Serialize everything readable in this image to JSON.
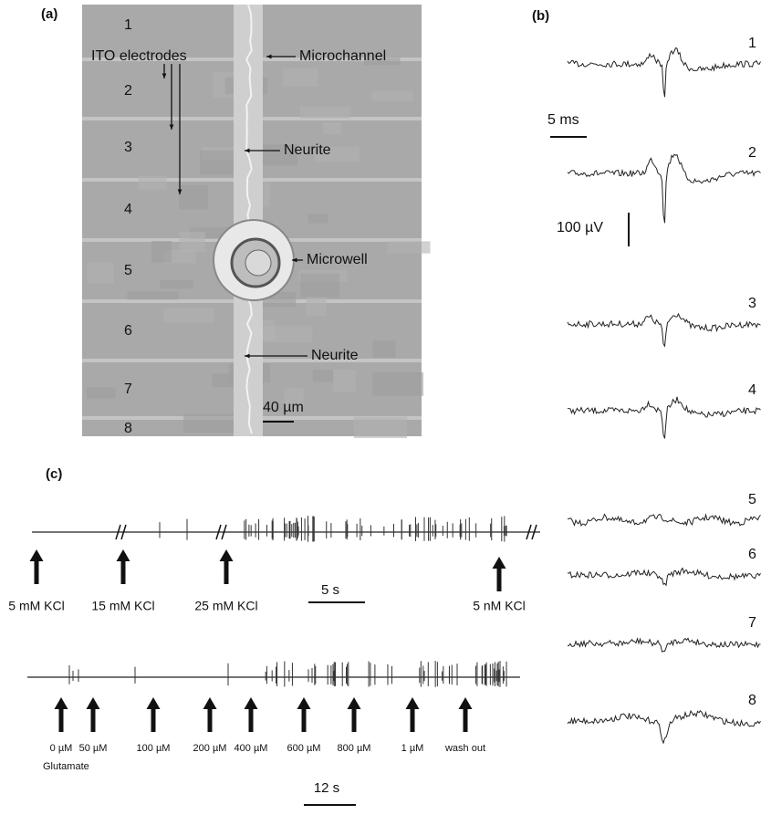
{
  "panel_a": {
    "label": "(a)",
    "electrodes": [
      1,
      2,
      3,
      4,
      5,
      6,
      7,
      8
    ],
    "ito_electrodes": "ITO electrodes",
    "microchannel": "Microchannel",
    "neurite_upper": "Neurite",
    "microwell": "Microwell",
    "neurite_lower": "Neurite",
    "scale_bar": "40 µm"
  },
  "panel_b": {
    "label": "(b)",
    "trace_numbers": [
      1,
      2,
      3,
      4,
      5,
      6,
      7,
      8
    ],
    "time_scale": "5 ms",
    "voltage_scale": "100 µV"
  },
  "panel_c": {
    "label": "(c)",
    "kcl_labels": [
      "5 mM KCl",
      "15 mM KCl",
      "25 mM KCl",
      "5 nM KCl"
    ],
    "kcl_time_scale": "5 s",
    "glutamate_labels": [
      "0 µM",
      "50 µM",
      "100 µM",
      "200 µM",
      "400 µM",
      "600 µM",
      "800 µM",
      "1 µM",
      "wash out"
    ],
    "glutamate_caption": "Glutamate",
    "glutamate_time_scale": "12 s"
  }
}
